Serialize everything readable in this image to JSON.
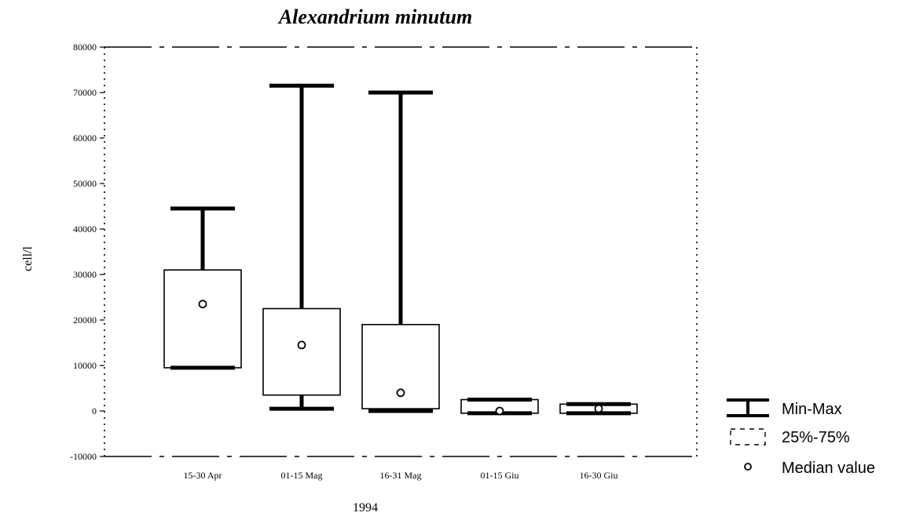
{
  "chart_data": {
    "type": "box",
    "title": "Alexandrium minutum",
    "xlabel": "1994",
    "ylabel": "cell/l",
    "ylim": [
      -10000,
      80000
    ],
    "yticks": [
      -10000,
      0,
      10000,
      20000,
      30000,
      40000,
      50000,
      60000,
      70000,
      80000
    ],
    "ytick_labels": [
      "-10000",
      "0",
      "10000",
      "20000",
      "30000",
      "40000",
      "50000",
      "60000",
      "70000",
      "80000"
    ],
    "categories": [
      "15-30 Apr",
      "01-15 Mag",
      "16-31 Mag",
      "01-15 Giu",
      "16-30 Giu"
    ],
    "boxes": [
      {
        "category": "15-30 Apr",
        "min": 9500,
        "q1": 9500,
        "median": 23500,
        "q3": 31000,
        "max": 44500
      },
      {
        "category": "01-15 Mag",
        "min": 500,
        "q1": 3500,
        "median": 14500,
        "q3": 22500,
        "max": 71500
      },
      {
        "category": "16-31 Mag",
        "min": 0,
        "q1": 500,
        "median": 4000,
        "q3": 19000,
        "max": 70000
      },
      {
        "category": "01-15 Giu",
        "min": -500,
        "q1": -500,
        "median": 0,
        "q3": 2500,
        "max": 2500
      },
      {
        "category": "16-30 Giu",
        "min": -500,
        "q1": -500,
        "median": 500,
        "q3": 1500,
        "max": 1500
      }
    ],
    "legend": {
      "position": "right",
      "entries": [
        "Min-Max",
        "25%-75%",
        "Median value"
      ]
    },
    "grid": false
  }
}
